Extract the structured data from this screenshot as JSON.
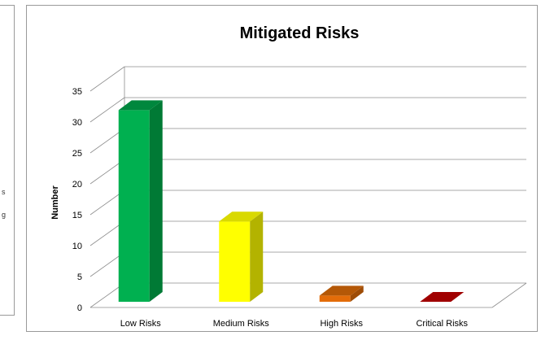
{
  "left_panel": {
    "fragments": [
      "s",
      "g"
    ]
  },
  "chart_data": {
    "type": "bar",
    "title": "Mitigated Risks",
    "xlabel": "",
    "ylabel": "Number",
    "categories": [
      "Low Risks",
      "Medium Risks",
      "High Risks",
      "Critical Risks"
    ],
    "values": [
      31,
      13,
      1,
      0
    ],
    "ylim": [
      0,
      35
    ],
    "yticks": [
      0,
      5,
      10,
      15,
      20,
      25,
      30,
      35
    ],
    "grid": true,
    "legend": "none",
    "colors": {
      "bar_front": [
        "#00b050",
        "#ffff00",
        "#e36c09",
        "#c00000"
      ],
      "bar_side": [
        "#007a35",
        "#b3b300",
        "#9e4c06",
        "#870000"
      ],
      "bar_top": [
        "#00873d",
        "#d9d900",
        "#b45807",
        "#a00000"
      ],
      "grid": "#8c8c8c",
      "text": "#000000"
    }
  }
}
